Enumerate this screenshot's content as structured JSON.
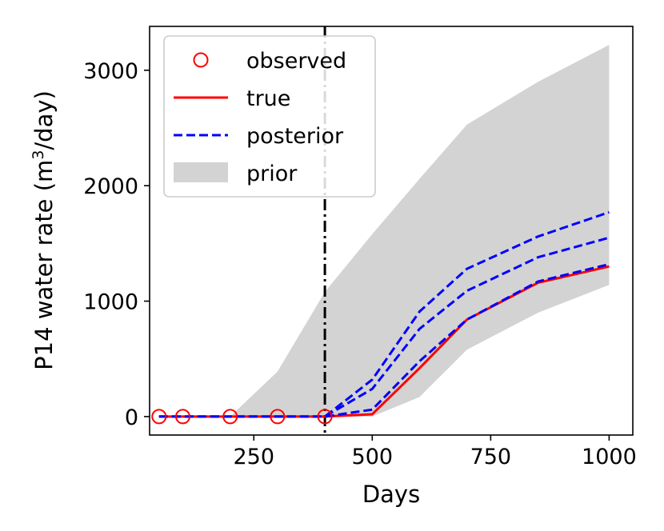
{
  "chart_data": {
    "type": "line",
    "xlabel": "Days",
    "ylabel_prefix": "P14 water rate (m",
    "ylabel_sup": "3",
    "ylabel_suffix": "/day)",
    "xlim": [
      30,
      1050
    ],
    "ylim": [
      -160,
      3380
    ],
    "xticks": [
      250,
      500,
      750,
      1000
    ],
    "xtick_labels": [
      "250",
      "500",
      "750",
      "1000"
    ],
    "yticks": [
      0,
      1000,
      2000,
      3000
    ],
    "ytick_labels": [
      "0",
      "1000",
      "2000",
      "3000"
    ],
    "vline_x": 400,
    "legend": {
      "position": "upper-left",
      "entries": [
        "observed",
        "true",
        "posterior",
        "prior"
      ]
    },
    "colors": {
      "observed": "#ff0000",
      "true": "#ff0000",
      "posterior": "#0000ff",
      "prior": "#d3d3d3",
      "vline": "#000000"
    },
    "prior_band": {
      "x": [
        50,
        100,
        200,
        300,
        400,
        500,
        600,
        700,
        850,
        1000
      ],
      "lower": [
        0,
        0,
        0,
        0,
        0,
        0,
        170,
        580,
        900,
        1140
      ],
      "upper": [
        0,
        0,
        0,
        390,
        1080,
        1580,
        2060,
        2530,
        2900,
        3220
      ]
    },
    "observed": {
      "x": [
        50,
        100,
        200,
        300,
        400
      ],
      "y": [
        0,
        0,
        0,
        0,
        0
      ]
    },
    "true": {
      "x": [
        50,
        100,
        200,
        300,
        400,
        500,
        600,
        700,
        850,
        1000
      ],
      "y": [
        0,
        0,
        0,
        0,
        0,
        20,
        420,
        840,
        1160,
        1300
      ]
    },
    "posterior": [
      {
        "x": [
          50,
          100,
          200,
          300,
          400,
          500,
          600,
          700,
          850,
          1000
        ],
        "y": [
          0,
          0,
          0,
          0,
          0,
          320,
          910,
          1280,
          1560,
          1770
        ]
      },
      {
        "x": [
          50,
          100,
          200,
          300,
          400,
          500,
          600,
          700,
          850,
          1000
        ],
        "y": [
          0,
          0,
          0,
          0,
          0,
          240,
          760,
          1090,
          1380,
          1550
        ]
      },
      {
        "x": [
          50,
          100,
          200,
          300,
          400,
          500,
          600,
          700,
          850,
          1000
        ],
        "y": [
          0,
          0,
          0,
          0,
          0,
          60,
          480,
          840,
          1170,
          1320
        ]
      }
    ]
  }
}
